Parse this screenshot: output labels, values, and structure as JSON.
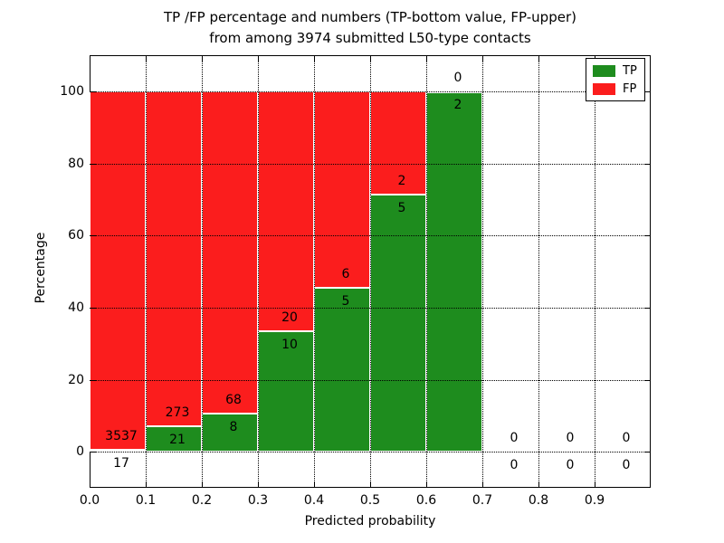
{
  "title": {
    "line1": "TP /FP percentage and numbers (TP-bottom value, FP-upper)",
    "line2": "from among 3974 submitted L50-type contacts"
  },
  "axes": {
    "xlabel": "Predicted probability",
    "ylabel": "Percentage",
    "x_tick_labels": [
      "0.0",
      "0.1",
      "0.2",
      "0.3",
      "0.4",
      "0.5",
      "0.6",
      "0.7",
      "0.8",
      "0.9"
    ],
    "x_tick_values": [
      0.0,
      0.1,
      0.2,
      0.3,
      0.4,
      0.5,
      0.6,
      0.7,
      0.8,
      0.9
    ],
    "y_tick_labels": [
      "0",
      "20",
      "40",
      "60",
      "80",
      "100"
    ],
    "y_tick_values": [
      0,
      20,
      40,
      60,
      80,
      100
    ],
    "x_grid_values": [
      0.1,
      0.2,
      0.3,
      0.4,
      0.5,
      0.6,
      0.7,
      0.8,
      0.9
    ],
    "xlim": [
      0.0,
      1.0
    ],
    "ylim": [
      -10,
      110
    ],
    "grid": "dotted, drawn over bars"
  },
  "legend": {
    "position": "upper right",
    "entries": [
      {
        "label": "TP",
        "color": "#1e8c1e"
      },
      {
        "label": "FP",
        "color": "#fb1d1d"
      }
    ]
  },
  "chart_data": {
    "type": "bar",
    "stacked": true,
    "normalized_to": 100,
    "title": "TP /FP percentage and numbers (TP-bottom value, FP-upper)\nfrom among 3974 submitted L50-type contacts",
    "xlabel": "Predicted probability",
    "ylabel": "Percentage",
    "xlim": [
      0.0,
      1.0
    ],
    "ylim": [
      -10,
      110
    ],
    "total_submitted": 3974,
    "bin_edges": [
      0.0,
      0.1,
      0.2,
      0.3,
      0.4,
      0.5,
      0.6,
      0.7,
      0.8,
      0.9,
      1.0
    ],
    "series": [
      {
        "name": "TP",
        "color": "#1e8c1e",
        "counts": [
          17,
          21,
          8,
          10,
          5,
          5,
          2,
          0,
          0,
          0
        ]
      },
      {
        "name": "FP",
        "color": "#fb1d1d",
        "counts": [
          3537,
          273,
          68,
          20,
          6,
          2,
          0,
          0,
          0,
          0
        ]
      }
    ],
    "tp_percent_per_bin": [
      0.48,
      7.14,
      10.53,
      33.33,
      45.45,
      71.43,
      100.0,
      null,
      null,
      null
    ],
    "label_convention": "TP count below boundary, FP count above boundary"
  }
}
